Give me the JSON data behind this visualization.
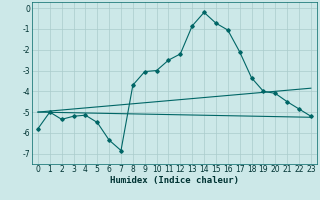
{
  "title": "",
  "xlabel": "Humidex (Indice chaleur)",
  "bg_color": "#cce8e8",
  "grid_color": "#aacccc",
  "line_color": "#006666",
  "xlim": [
    -0.5,
    23.5
  ],
  "ylim": [
    -7.5,
    0.3
  ],
  "yticks": [
    0,
    -1,
    -2,
    -3,
    -4,
    -5,
    -6,
    -7
  ],
  "xticks": [
    0,
    1,
    2,
    3,
    4,
    5,
    6,
    7,
    8,
    9,
    10,
    11,
    12,
    13,
    14,
    15,
    16,
    17,
    18,
    19,
    20,
    21,
    22,
    23
  ],
  "curve1_x": [
    0,
    1,
    2,
    3,
    4,
    5,
    6,
    7,
    8,
    9,
    10,
    11,
    12,
    13,
    14,
    15,
    16,
    17,
    18,
    19,
    20,
    21,
    22,
    23
  ],
  "curve1_y": [
    -5.8,
    -5.0,
    -5.35,
    -5.2,
    -5.15,
    -5.5,
    -6.35,
    -6.85,
    -3.7,
    -3.05,
    -3.0,
    -2.5,
    -2.2,
    -0.85,
    -0.2,
    -0.72,
    -1.05,
    -2.1,
    -3.35,
    -4.0,
    -4.1,
    -4.5,
    -4.85,
    -5.2
  ],
  "line2_x": [
    0,
    23
  ],
  "line2_y": [
    -5.0,
    -5.25
  ],
  "line3_x": [
    0,
    23
  ],
  "line3_y": [
    -5.0,
    -3.85
  ],
  "xlabel_fontsize": 6.5,
  "tick_fontsize": 5.5
}
